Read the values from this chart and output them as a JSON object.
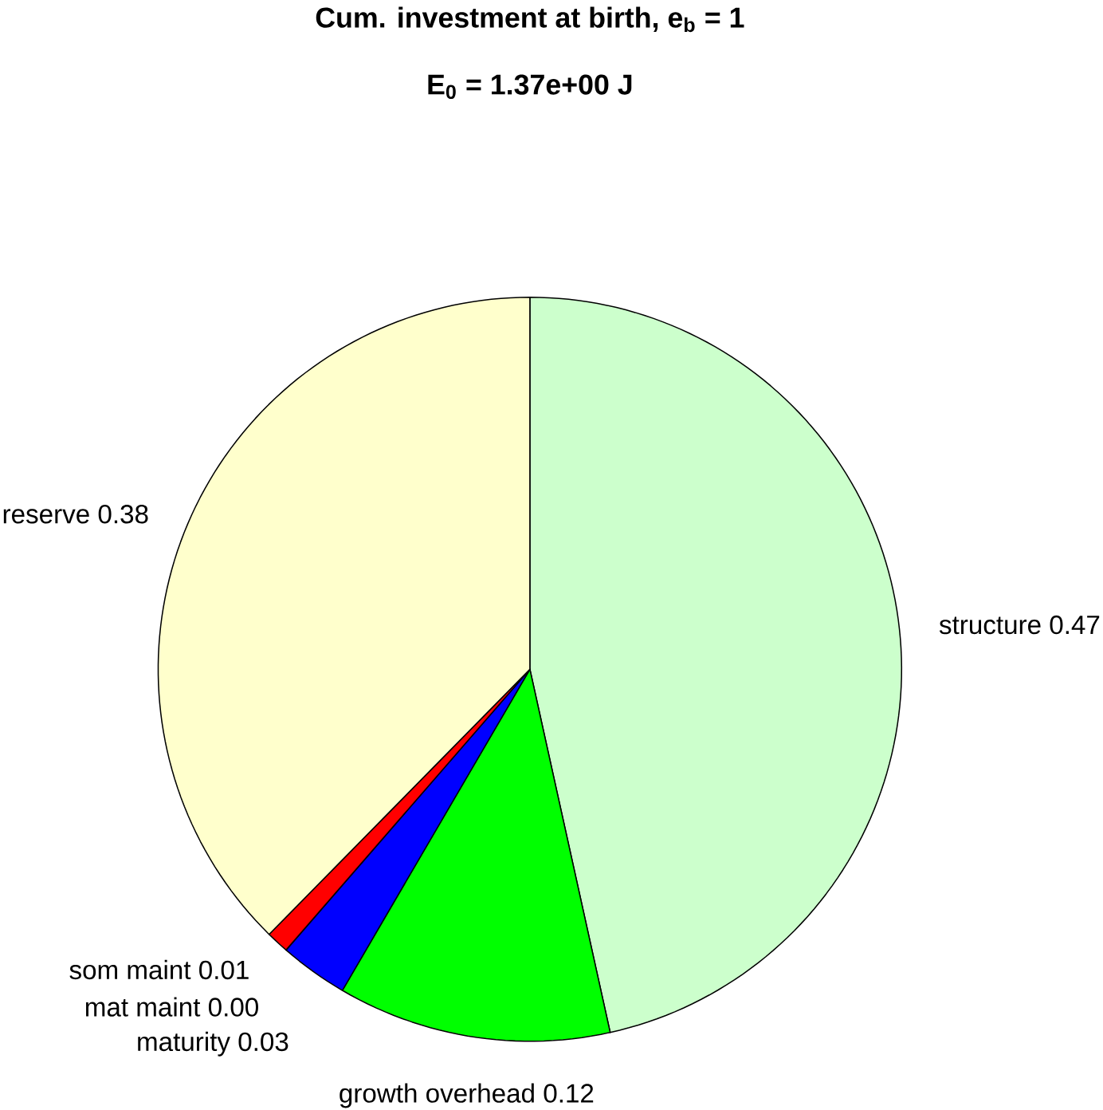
{
  "chart_data": {
    "type": "pie",
    "title": "Cum. investment at birth, e$_{b}$ = 1",
    "subtitle": "E$_{0}$ = 1.37e+00 J",
    "categories": [
      "structure 0.47",
      "growth overhead 0.12",
      "maturity 0.03",
      "mat maint 0.00",
      "som maint 0.01",
      "reserve 0.38"
    ],
    "values": [
      0.47,
      0.12,
      0.03,
      0.0,
      0.01,
      0.38
    ],
    "colors": [
      "#ccffcc",
      "#00ff00",
      "#0000ff",
      "#ff00ff",
      "#ff0000",
      "#ffffcc"
    ]
  }
}
